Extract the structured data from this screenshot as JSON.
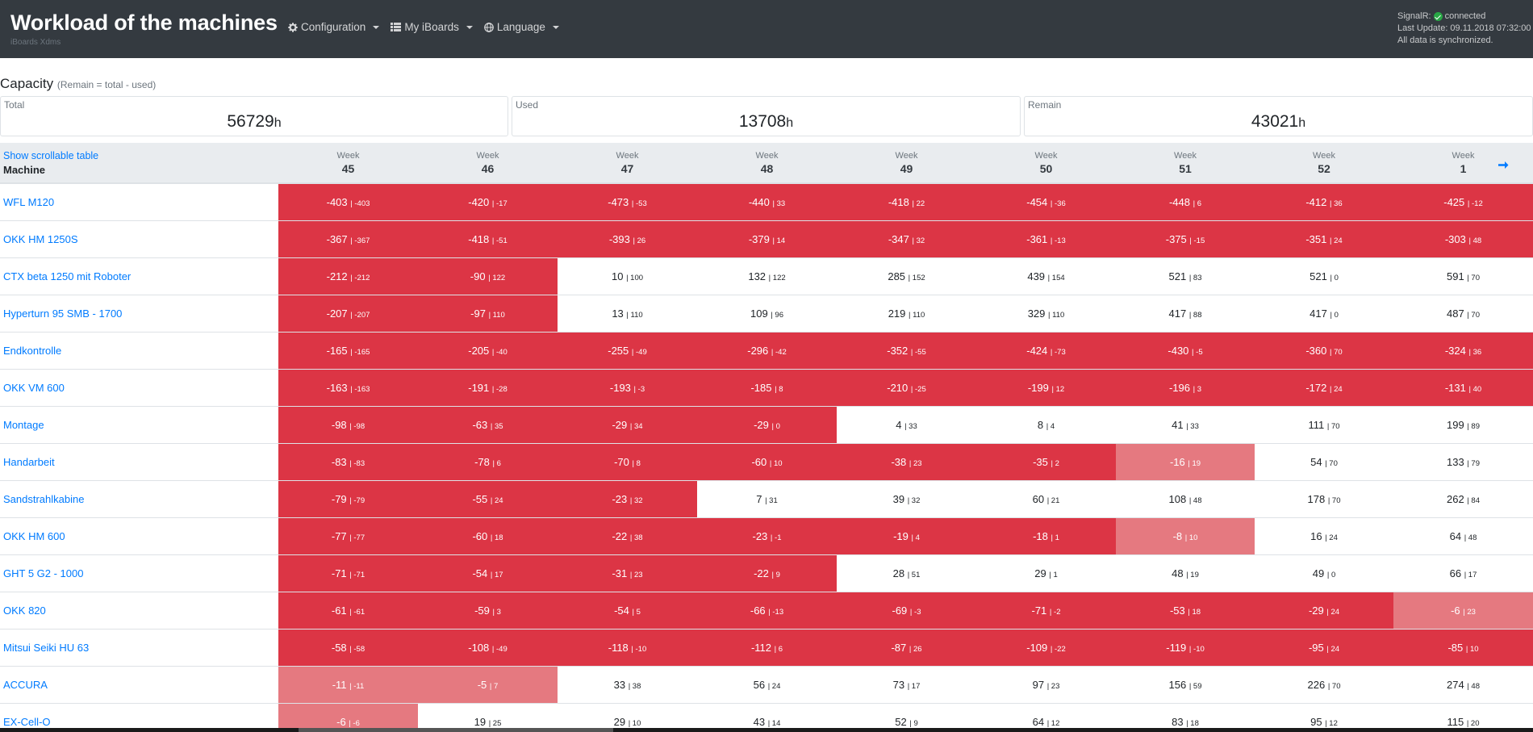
{
  "header": {
    "title": "Workload of the machines",
    "subtitle": "iBoards Xdms",
    "nav": [
      {
        "label": "Configuration",
        "icon": "gear-icon"
      },
      {
        "label": "My iBoards",
        "icon": "list-icon"
      },
      {
        "label": "Language",
        "icon": "globe-icon"
      }
    ],
    "status": {
      "signalr_prefix": "SignalR:",
      "signalr_state": "connected",
      "last_update": "Last Update: 09.11.2018 07:32:00",
      "sync": "All data is synchronized."
    }
  },
  "capacity": {
    "heading": "Capacity",
    "note": "(Remain = total - used)",
    "unit": "h",
    "total_label": "Total",
    "total_value": "56729",
    "used_label": "Used",
    "used_value": "13708",
    "remain_label": "Remain",
    "remain_value": "43021"
  },
  "table": {
    "toggle_label": "Show scrollable table",
    "machine_header": "Machine",
    "week_label": "Week",
    "weeks": [
      "45",
      "46",
      "47",
      "48",
      "49",
      "50",
      "51",
      "52",
      "1"
    ],
    "rows": [
      {
        "name": "WFL M120",
        "cells": [
          [
            "-403",
            "| -403",
            "neg"
          ],
          [
            "-420",
            "| -17",
            "neg"
          ],
          [
            "-473",
            "| -53",
            "neg"
          ],
          [
            "-440",
            "| 33",
            "neg"
          ],
          [
            "-418",
            "| 22",
            "neg"
          ],
          [
            "-454",
            "| -36",
            "neg"
          ],
          [
            "-448",
            "| 6",
            "neg"
          ],
          [
            "-412",
            "| 36",
            "neg"
          ],
          [
            "-425",
            "| -12",
            "neg"
          ]
        ]
      },
      {
        "name": "OKK HM 1250S",
        "cells": [
          [
            "-367",
            "| -367",
            "neg"
          ],
          [
            "-418",
            "| -51",
            "neg"
          ],
          [
            "-393",
            "| 26",
            "neg"
          ],
          [
            "-379",
            "| 14",
            "neg"
          ],
          [
            "-347",
            "| 32",
            "neg"
          ],
          [
            "-361",
            "| -13",
            "neg"
          ],
          [
            "-375",
            "| -15",
            "neg"
          ],
          [
            "-351",
            "| 24",
            "neg"
          ],
          [
            "-303",
            "| 48",
            "neg"
          ]
        ]
      },
      {
        "name": "CTX beta 1250 mit Roboter",
        "cells": [
          [
            "-212",
            "| -212",
            "neg"
          ],
          [
            "-90",
            "| 122",
            "neg"
          ],
          [
            "10",
            "| 100",
            "pos"
          ],
          [
            "132",
            "| 122",
            "pos"
          ],
          [
            "285",
            "| 152",
            "pos"
          ],
          [
            "439",
            "| 154",
            "pos"
          ],
          [
            "521",
            "| 83",
            "pos"
          ],
          [
            "521",
            "| 0",
            "pos"
          ],
          [
            "591",
            "| 70",
            "pos"
          ]
        ]
      },
      {
        "name": "Hyperturn 95 SMB - 1700",
        "cells": [
          [
            "-207",
            "| -207",
            "neg"
          ],
          [
            "-97",
            "| 110",
            "neg"
          ],
          [
            "13",
            "| 110",
            "pos"
          ],
          [
            "109",
            "| 96",
            "pos"
          ],
          [
            "219",
            "| 110",
            "pos"
          ],
          [
            "329",
            "| 110",
            "pos"
          ],
          [
            "417",
            "| 88",
            "pos"
          ],
          [
            "417",
            "| 0",
            "pos"
          ],
          [
            "487",
            "| 70",
            "pos"
          ]
        ]
      },
      {
        "name": "Endkontrolle",
        "cells": [
          [
            "-165",
            "| -165",
            "neg"
          ],
          [
            "-205",
            "| -40",
            "neg"
          ],
          [
            "-255",
            "| -49",
            "neg"
          ],
          [
            "-296",
            "| -42",
            "neg"
          ],
          [
            "-352",
            "| -55",
            "neg"
          ],
          [
            "-424",
            "| -73",
            "neg"
          ],
          [
            "-430",
            "| -5",
            "neg"
          ],
          [
            "-360",
            "| 70",
            "neg"
          ],
          [
            "-324",
            "| 36",
            "neg"
          ]
        ]
      },
      {
        "name": "OKK VM 600",
        "cells": [
          [
            "-163",
            "| -163",
            "neg"
          ],
          [
            "-191",
            "| -28",
            "neg"
          ],
          [
            "-193",
            "| -3",
            "neg"
          ],
          [
            "-185",
            "| 8",
            "neg"
          ],
          [
            "-210",
            "| -25",
            "neg"
          ],
          [
            "-199",
            "| 12",
            "neg"
          ],
          [
            "-196",
            "| 3",
            "neg"
          ],
          [
            "-172",
            "| 24",
            "neg"
          ],
          [
            "-131",
            "| 40",
            "neg"
          ]
        ]
      },
      {
        "name": "Montage",
        "cells": [
          [
            "-98",
            "| -98",
            "neg"
          ],
          [
            "-63",
            "| 35",
            "neg"
          ],
          [
            "-29",
            "| 34",
            "neg"
          ],
          [
            "-29",
            "| 0",
            "neg"
          ],
          [
            "4",
            "| 33",
            "pos"
          ],
          [
            "8",
            "| 4",
            "pos"
          ],
          [
            "41",
            "| 33",
            "pos"
          ],
          [
            "111",
            "| 70",
            "pos"
          ],
          [
            "199",
            "| 89",
            "pos"
          ]
        ]
      },
      {
        "name": "Handarbeit",
        "cells": [
          [
            "-83",
            "| -83",
            "neg"
          ],
          [
            "-78",
            "| 6",
            "neg"
          ],
          [
            "-70",
            "| 8",
            "neg"
          ],
          [
            "-60",
            "| 10",
            "neg"
          ],
          [
            "-38",
            "| 23",
            "neg"
          ],
          [
            "-35",
            "| 2",
            "neg"
          ],
          [
            "-16",
            "| 19",
            "light"
          ],
          [
            "54",
            "| 70",
            "pos"
          ],
          [
            "133",
            "| 79",
            "pos"
          ]
        ]
      },
      {
        "name": "Sandstrahlkabine",
        "cells": [
          [
            "-79",
            "| -79",
            "neg"
          ],
          [
            "-55",
            "| 24",
            "neg"
          ],
          [
            "-23",
            "| 32",
            "neg"
          ],
          [
            "7",
            "| 31",
            "pos"
          ],
          [
            "39",
            "| 32",
            "pos"
          ],
          [
            "60",
            "| 21",
            "pos"
          ],
          [
            "108",
            "| 48",
            "pos"
          ],
          [
            "178",
            "| 70",
            "pos"
          ],
          [
            "262",
            "| 84",
            "pos"
          ]
        ]
      },
      {
        "name": "OKK HM 600",
        "cells": [
          [
            "-77",
            "| -77",
            "neg"
          ],
          [
            "-60",
            "| 18",
            "neg"
          ],
          [
            "-22",
            "| 38",
            "neg"
          ],
          [
            "-23",
            "| -1",
            "neg"
          ],
          [
            "-19",
            "| 4",
            "neg"
          ],
          [
            "-18",
            "| 1",
            "neg"
          ],
          [
            "-8",
            "| 10",
            "light"
          ],
          [
            "16",
            "| 24",
            "pos"
          ],
          [
            "64",
            "| 48",
            "pos"
          ]
        ]
      },
      {
        "name": "GHT 5 G2 - 1000",
        "cells": [
          [
            "-71",
            "| -71",
            "neg"
          ],
          [
            "-54",
            "| 17",
            "neg"
          ],
          [
            "-31",
            "| 23",
            "neg"
          ],
          [
            "-22",
            "| 9",
            "neg"
          ],
          [
            "28",
            "| 51",
            "pos"
          ],
          [
            "29",
            "| 1",
            "pos"
          ],
          [
            "48",
            "| 19",
            "pos"
          ],
          [
            "49",
            "| 0",
            "pos"
          ],
          [
            "66",
            "| 17",
            "pos"
          ]
        ]
      },
      {
        "name": "OKK 820",
        "cells": [
          [
            "-61",
            "| -61",
            "neg"
          ],
          [
            "-59",
            "| 3",
            "neg"
          ],
          [
            "-54",
            "| 5",
            "neg"
          ],
          [
            "-66",
            "| -13",
            "neg"
          ],
          [
            "-69",
            "| -3",
            "neg"
          ],
          [
            "-71",
            "| -2",
            "neg"
          ],
          [
            "-53",
            "| 18",
            "neg"
          ],
          [
            "-29",
            "| 24",
            "neg"
          ],
          [
            "-6",
            "| 23",
            "light"
          ]
        ]
      },
      {
        "name": "Mitsui Seiki HU 63",
        "cells": [
          [
            "-58",
            "| -58",
            "neg"
          ],
          [
            "-108",
            "| -49",
            "neg"
          ],
          [
            "-118",
            "| -10",
            "neg"
          ],
          [
            "-112",
            "| 6",
            "neg"
          ],
          [
            "-87",
            "| 26",
            "neg"
          ],
          [
            "-109",
            "| -22",
            "neg"
          ],
          [
            "-119",
            "| -10",
            "neg"
          ],
          [
            "-95",
            "| 24",
            "neg"
          ],
          [
            "-85",
            "| 10",
            "neg"
          ]
        ]
      },
      {
        "name": "ACCURA",
        "cells": [
          [
            "-11",
            "| -11",
            "light"
          ],
          [
            "-5",
            "| 7",
            "light"
          ],
          [
            "33",
            "| 38",
            "pos"
          ],
          [
            "56",
            "| 24",
            "pos"
          ],
          [
            "73",
            "| 17",
            "pos"
          ],
          [
            "97",
            "| 23",
            "pos"
          ],
          [
            "156",
            "| 59",
            "pos"
          ],
          [
            "226",
            "| 70",
            "pos"
          ],
          [
            "274",
            "| 48",
            "pos"
          ]
        ]
      },
      {
        "name": "EX-Cell-O",
        "cells": [
          [
            "-6",
            "| -6",
            "light"
          ],
          [
            "19",
            "| 25",
            "pos"
          ],
          [
            "29",
            "| 10",
            "pos"
          ],
          [
            "43",
            "| 14",
            "pos"
          ],
          [
            "52",
            "| 9",
            "pos"
          ],
          [
            "64",
            "| 12",
            "pos"
          ],
          [
            "83",
            "| 18",
            "pos"
          ],
          [
            "95",
            "| 12",
            "pos"
          ],
          [
            "115",
            "| 20",
            "pos"
          ]
        ]
      }
    ]
  },
  "colors": {
    "header_bg": "#343a40",
    "negative": "#dc3545",
    "slightly_negative": "#e57980",
    "link": "#007bff",
    "connected": "#28a745"
  }
}
